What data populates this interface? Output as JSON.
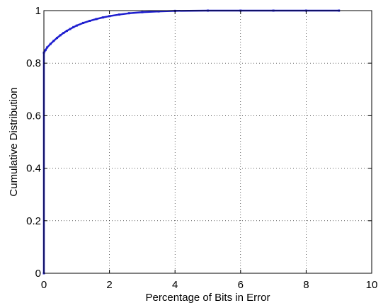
{
  "chart_data": {
    "type": "line",
    "title": "",
    "xlabel": "Percentage of Bits in Error",
    "ylabel": "Cumulative Distribution",
    "xlim": [
      0,
      10
    ],
    "ylim": [
      0,
      1
    ],
    "xticks": [
      0,
      2,
      4,
      6,
      8,
      10
    ],
    "yticks": [
      0,
      0.2,
      0.4,
      0.6,
      0.8,
      1
    ],
    "xtick_labels": [
      "0",
      "2",
      "4",
      "6",
      "8",
      "10"
    ],
    "ytick_labels": [
      "0",
      "0.2",
      "0.4",
      "0.6",
      "0.8",
      "1"
    ],
    "grid": true,
    "series": [
      {
        "color": "#1f1fcf",
        "x": [
          0,
          0,
          0.02,
          0.05,
          0.1,
          0.2,
          0.3,
          0.4,
          0.5,
          0.6,
          0.7,
          0.8,
          0.9,
          1.0,
          1.2,
          1.4,
          1.6,
          1.8,
          2.0,
          2.3,
          2.6,
          3.0,
          3.5,
          4.0,
          5.0,
          6.0,
          7.0,
          8.0,
          9.0
        ],
        "y": [
          0,
          0.84,
          0.845,
          0.85,
          0.86,
          0.873,
          0.885,
          0.896,
          0.906,
          0.915,
          0.923,
          0.93,
          0.937,
          0.943,
          0.953,
          0.961,
          0.968,
          0.974,
          0.979,
          0.985,
          0.99,
          0.994,
          0.997,
          0.999,
          1.0,
          1.0,
          1.0,
          1.0,
          1.0
        ]
      }
    ]
  }
}
